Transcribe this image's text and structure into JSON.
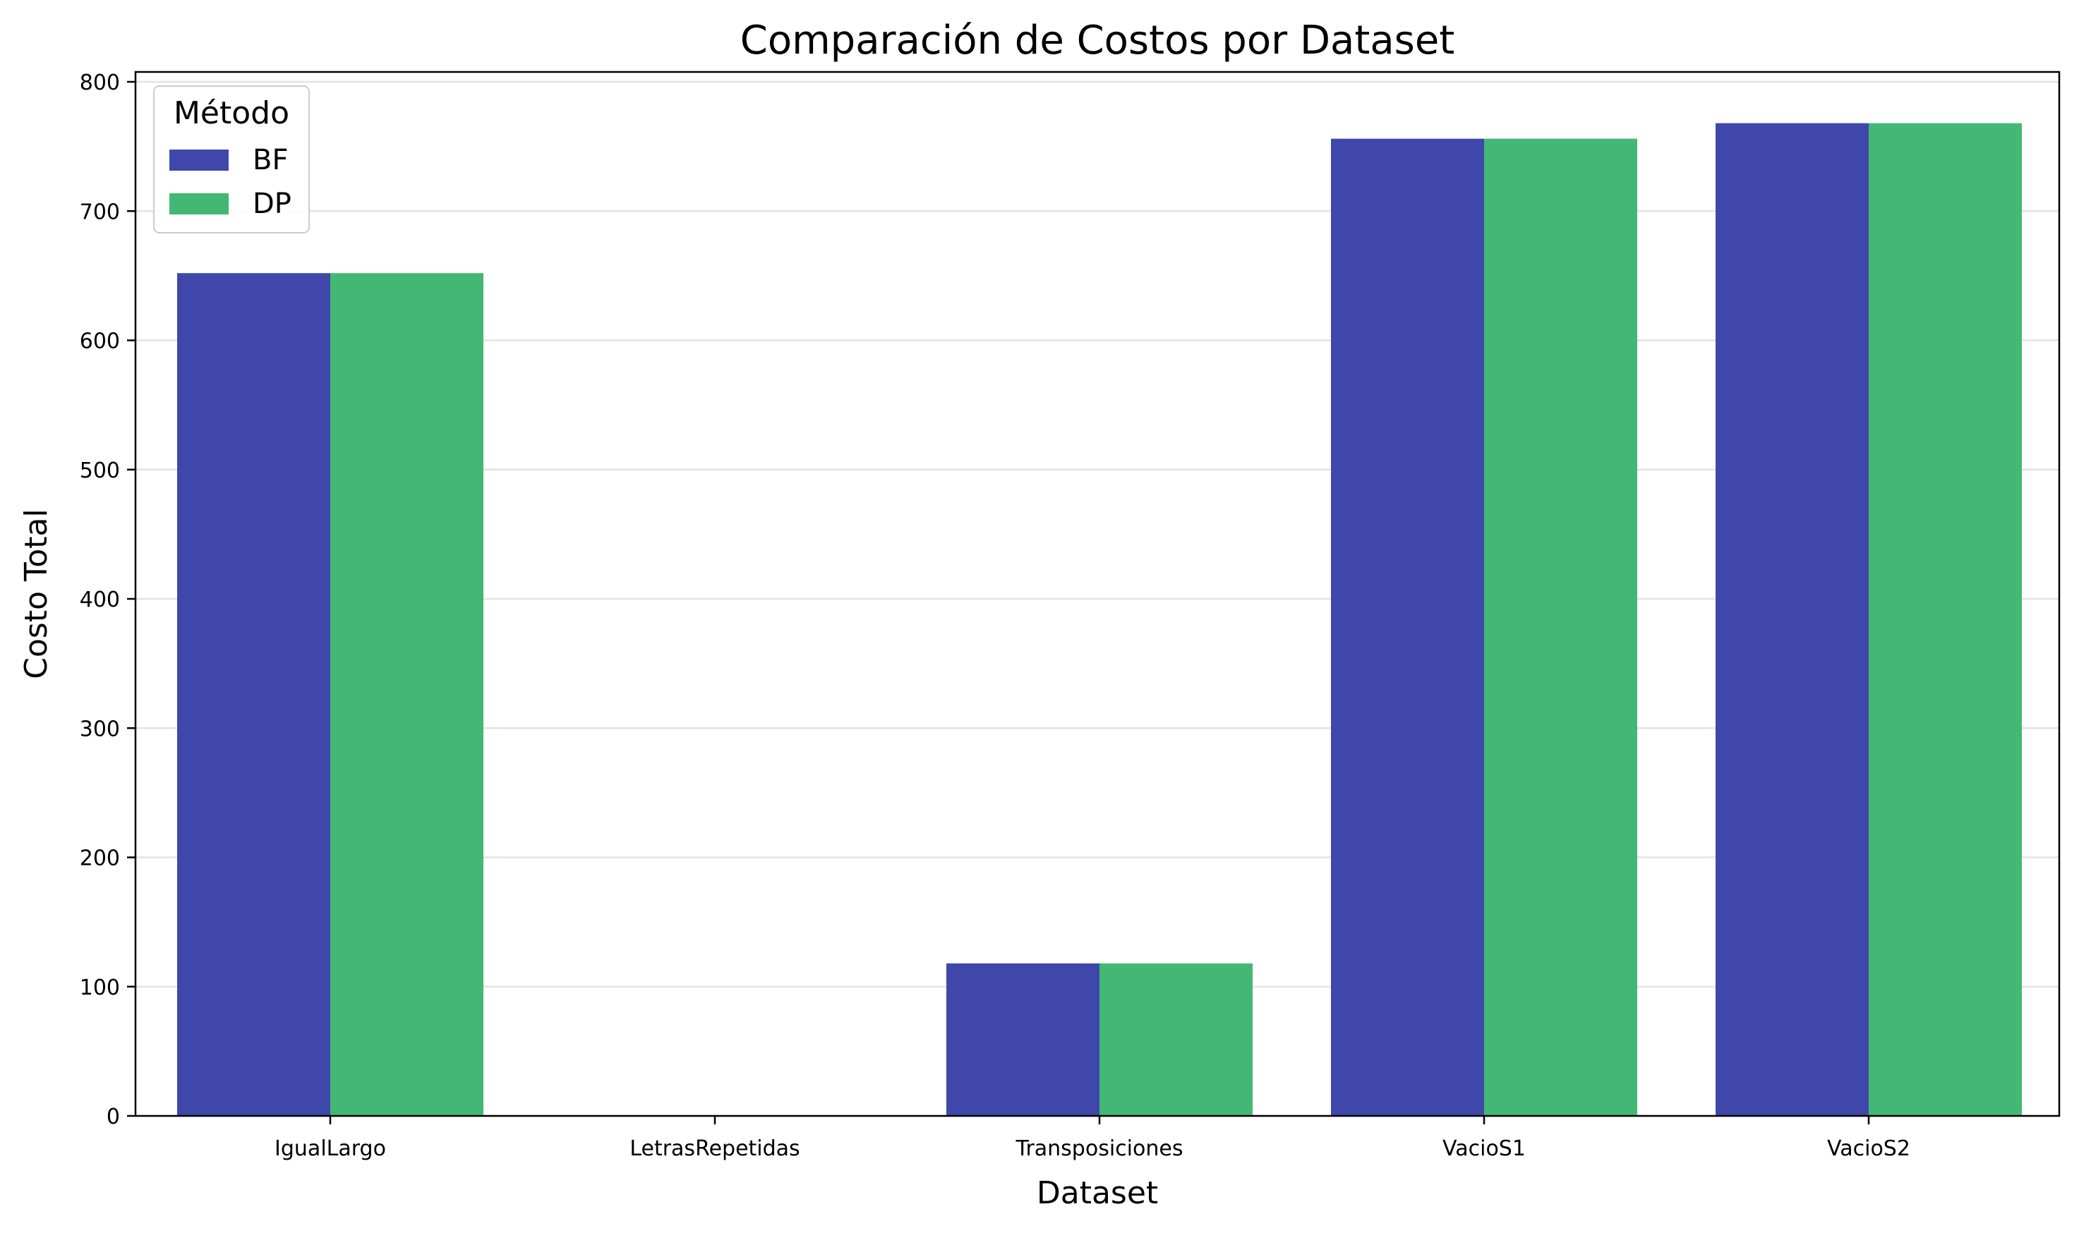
{
  "chart_data": {
    "type": "bar",
    "title": "Comparación de Costos por Dataset",
    "xlabel": "Dataset",
    "ylabel": "Costo Total",
    "categories": [
      "IgualLargo",
      "LetrasRepetidas",
      "Transposiciones",
      "VacioS1",
      "VacioS2"
    ],
    "series": [
      {
        "name": "BF",
        "color": "#3f48aa",
        "values": [
          652,
          0,
          118,
          756,
          768
        ]
      },
      {
        "name": "DP",
        "color": "#43b874",
        "values": [
          652,
          0,
          118,
          756,
          768
        ]
      }
    ],
    "ylim": [
      0,
      800
    ],
    "yticks": [
      0,
      100,
      200,
      300,
      400,
      500,
      600,
      700,
      800
    ],
    "grid": "y",
    "legend": {
      "title": "Método",
      "placement": "top-left"
    }
  }
}
